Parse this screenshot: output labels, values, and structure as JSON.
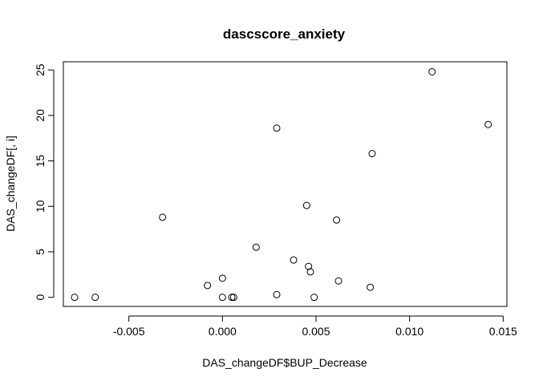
{
  "chart_data": {
    "type": "scatter",
    "title": "dascscore_anxiety",
    "xlabel": "DAS_changeDF$BUP_Decrease",
    "ylabel": "DAS_changeDF[, i]",
    "xlim": [
      -0.0085,
      0.0152
    ],
    "ylim": [
      -1.0,
      25.9
    ],
    "x_ticks": [
      -0.005,
      0.0,
      0.005,
      0.01,
      0.015
    ],
    "x_tick_labels": [
      "-0.005",
      "0.000",
      "0.005",
      "0.010",
      "0.015"
    ],
    "y_ticks": [
      0,
      5,
      10,
      15,
      20,
      25
    ],
    "y_tick_labels": [
      "0",
      "5",
      "10",
      "15",
      "20",
      "25"
    ],
    "grid": false,
    "legend": "none",
    "marker": "open-circle",
    "points": [
      {
        "x": -0.0079,
        "y": 0.0
      },
      {
        "x": -0.0068,
        "y": 0.0
      },
      {
        "x": -0.0032,
        "y": 8.8
      },
      {
        "x": -0.0008,
        "y": 1.3
      },
      {
        "x": 0.0,
        "y": 2.1
      },
      {
        "x": 0.0,
        "y": 0.0
      },
      {
        "x": 0.0005,
        "y": 0.0
      },
      {
        "x": 0.0006,
        "y": 0.0
      },
      {
        "x": 0.0018,
        "y": 5.5
      },
      {
        "x": 0.0029,
        "y": 18.6
      },
      {
        "x": 0.0029,
        "y": 0.3
      },
      {
        "x": 0.0038,
        "y": 4.1
      },
      {
        "x": 0.0045,
        "y": 10.1
      },
      {
        "x": 0.0046,
        "y": 3.4
      },
      {
        "x": 0.0047,
        "y": 2.8
      },
      {
        "x": 0.0049,
        "y": 0.0
      },
      {
        "x": 0.0061,
        "y": 8.5
      },
      {
        "x": 0.0062,
        "y": 1.8
      },
      {
        "x": 0.0079,
        "y": 1.1
      },
      {
        "x": 0.008,
        "y": 15.8
      },
      {
        "x": 0.0112,
        "y": 24.8
      },
      {
        "x": 0.0142,
        "y": 19.0
      }
    ]
  }
}
